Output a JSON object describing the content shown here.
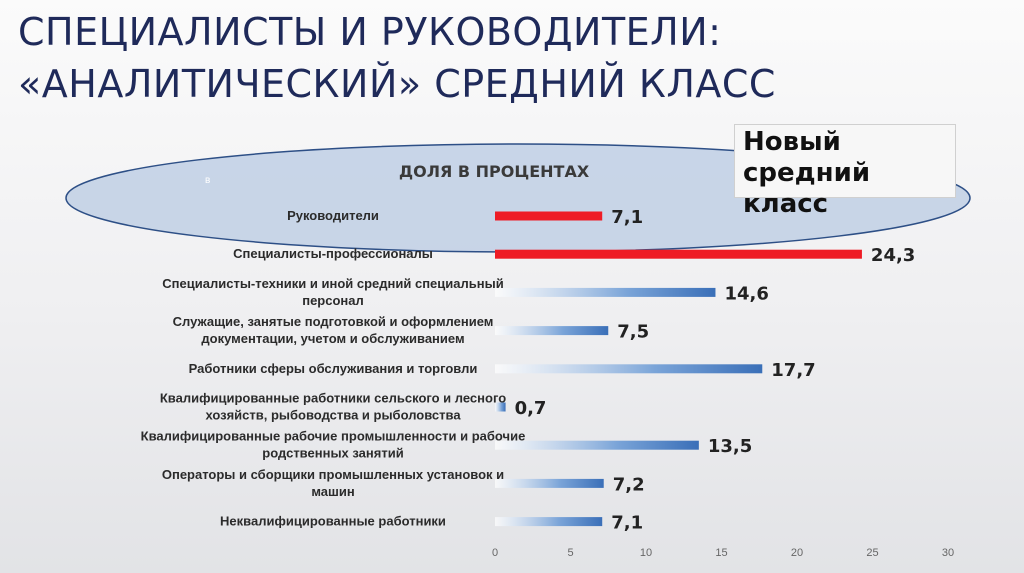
{
  "slide": {
    "title_line1": "СПЕЦИАЛИСТЫ И РУКОВОДИТЕЛИ:",
    "title_line2": "«АНАЛИТИЧЕСКИЙ» СРЕДНИЙ КЛАСС",
    "callout": "Новый средний класс",
    "stray_mark": "в"
  },
  "colors": {
    "title": "#1f2a5a",
    "highlight_bar": "#ee1c25",
    "bar_blue": "#3a6fb8",
    "ellipse_fill": "#b7c9e2",
    "ellipse_stroke": "#2d4f86"
  },
  "chart_data": {
    "type": "bar",
    "orientation": "horizontal",
    "title": "ДОЛЯ В ПРОЦЕНТАХ",
    "categories": [
      [
        "Руководители"
      ],
      [
        "Специалисты-профессионалы"
      ],
      [
        "Специалисты-техники и иной средний специальный",
        "персонал"
      ],
      [
        "Служащие, занятые подготовкой и оформлением",
        "документации, учетом и  обслуживанием"
      ],
      [
        "Работники сферы обслуживания и торговли"
      ],
      [
        "Квалифицированные работники сельского и лесного",
        "хозяйств, рыбоводства и  рыболовства"
      ],
      [
        "Квалифицированные рабочие промышленности и рабочие",
        "родственных занятий"
      ],
      [
        "Операторы и сборщики промышленных установок и",
        "машин"
      ],
      [
        "Неквалифицированные работники"
      ]
    ],
    "values": [
      7.1,
      24.3,
      14.6,
      7.5,
      17.7,
      0.7,
      13.5,
      7.2,
      7.1
    ],
    "value_labels": [
      "7,1",
      "24,3",
      "14,6",
      "7,5",
      "17,7",
      "0,7",
      "13,5",
      "7,2",
      "7,1"
    ],
    "highlighted": [
      true,
      true,
      false,
      false,
      false,
      false,
      false,
      false,
      false
    ],
    "xlim": [
      0,
      30
    ],
    "xticks": [
      0,
      5,
      10,
      15,
      20,
      25,
      30
    ],
    "grid": false,
    "legend": "none"
  }
}
